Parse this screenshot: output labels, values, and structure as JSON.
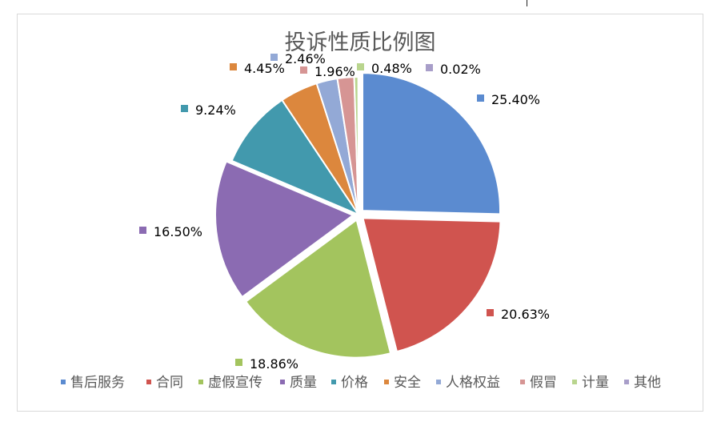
{
  "chart_data": {
    "type": "pie",
    "title": "投诉性质比例图",
    "categories": [
      "售后服务",
      "合同",
      "虚假宣传",
      "质量",
      "价格",
      "安全",
      "人格权益",
      "假冒",
      "计量",
      "其他"
    ],
    "values": [
      25.4,
      20.63,
      18.86,
      16.5,
      9.24,
      4.45,
      2.46,
      1.96,
      0.48,
      0.02
    ],
    "labels": [
      "25.40%",
      "20.63%",
      "18.86%",
      "16.50%",
      "9.24%",
      "4.45%",
      "2.46%",
      "1.96%",
      "0.48%",
      "0.02%"
    ],
    "colors": [
      "#5b8bd0",
      "#d0544f",
      "#a3c45e",
      "#8b6bb2",
      "#4299ad",
      "#dc873d",
      "#93a9d6",
      "#d69594",
      "#b9d58e",
      "#a89ec9"
    ],
    "exploded": [
      1,
      1,
      1,
      1,
      0,
      0,
      0,
      0,
      0,
      0
    ],
    "legend_position": "bottom"
  }
}
